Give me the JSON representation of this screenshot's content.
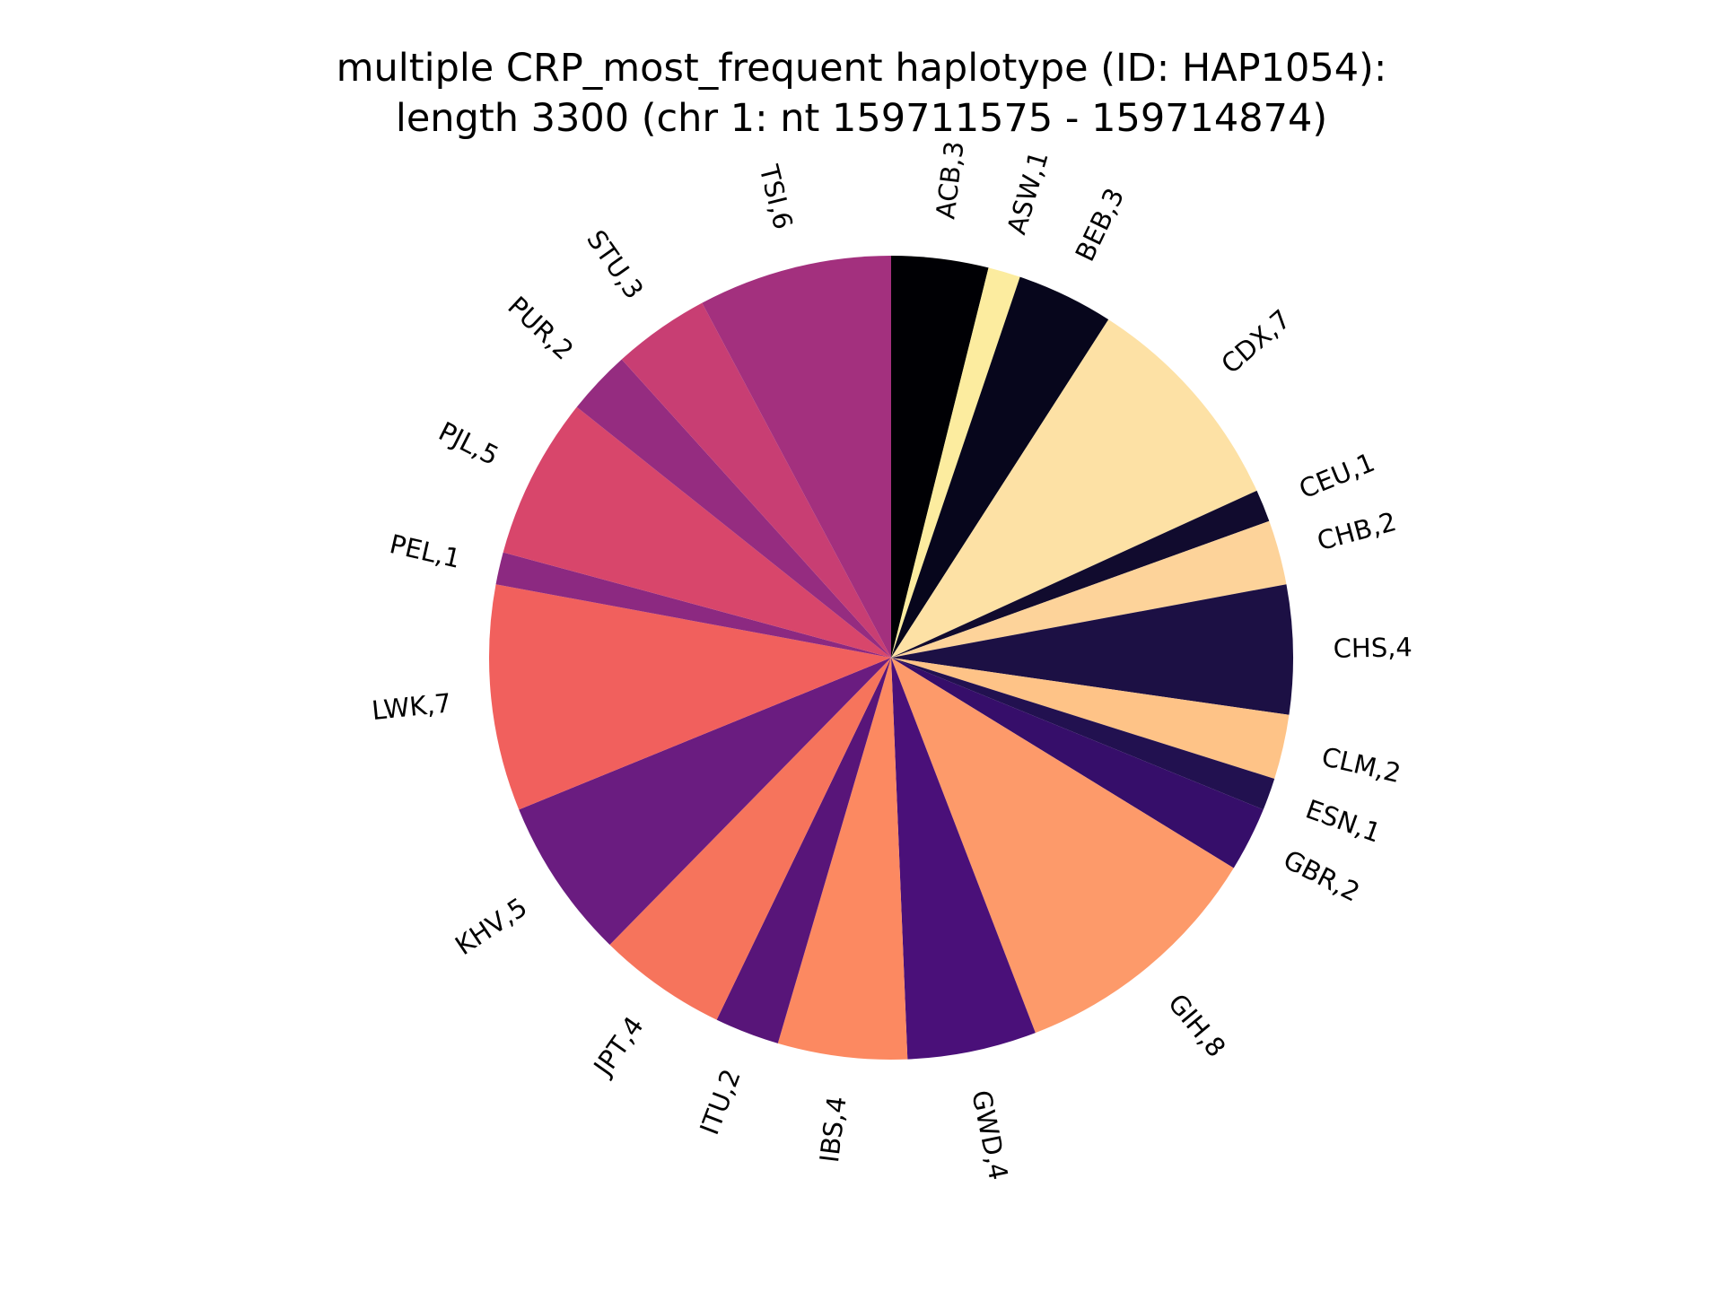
{
  "chart_data": {
    "type": "pie",
    "title_line1": "multiple CRP_most_frequent haplotype (ID: HAP1054):",
    "title_line2": "length 3300 (chr 1: nt 159711575 - 159714874)",
    "start_angle_deg": 90,
    "direction": "clockwise",
    "colormap": "magma",
    "slices": [
      {
        "label": "ACB,3",
        "category": "ACB",
        "value": 3,
        "color": "#000004"
      },
      {
        "label": "ASW,1",
        "category": "ASW",
        "value": 1,
        "color": "#fcec9f"
      },
      {
        "label": "BEB,3",
        "category": "BEB",
        "value": 3,
        "color": "#07061c"
      },
      {
        "label": "CDX,7",
        "category": "CDX",
        "value": 7,
        "color": "#fde1a5"
      },
      {
        "label": "CEU,1",
        "category": "CEU",
        "value": 1,
        "color": "#110b2e"
      },
      {
        "label": "CHB,2",
        "category": "CHB",
        "value": 2,
        "color": "#fdd39a"
      },
      {
        "label": "CHS,4",
        "category": "CHS",
        "value": 4,
        "color": "#1c1044"
      },
      {
        "label": "CLM,2",
        "category": "CLM",
        "value": 2,
        "color": "#fec387"
      },
      {
        "label": "ESN,1",
        "category": "ESN",
        "value": 1,
        "color": "#221150"
      },
      {
        "label": "GBR,2",
        "category": "GBR",
        "value": 2,
        "color": "#360e6a"
      },
      {
        "label": "GIH,8",
        "category": "GIH",
        "value": 8,
        "color": "#fd9a6a"
      },
      {
        "label": "GWD,4",
        "category": "GWD",
        "value": 4,
        "color": "#4a1079"
      },
      {
        "label": "IBS,4",
        "category": "IBS",
        "value": 4,
        "color": "#fc8961"
      },
      {
        "label": "ITU,2",
        "category": "ITU",
        "value": 2,
        "color": "#581579"
      },
      {
        "label": "JPT,4",
        "category": "JPT",
        "value": 4,
        "color": "#f6745c"
      },
      {
        "label": "KHV,5",
        "category": "KHV",
        "value": 5,
        "color": "#6a1c80"
      },
      {
        "label": "LWK,7",
        "category": "LWK",
        "value": 7,
        "color": "#f1605d"
      },
      {
        "label": "PEL,1",
        "category": "PEL",
        "value": 1,
        "color": "#8c2981"
      },
      {
        "label": "PJL,5",
        "category": "PJL",
        "value": 5,
        "color": "#d8466b"
      },
      {
        "label": "PUR,2",
        "category": "PUR",
        "value": 2,
        "color": "#952c80"
      },
      {
        "label": "STU,3",
        "category": "STU",
        "value": 3,
        "color": "#c83e73"
      },
      {
        "label": "TSI,6",
        "category": "TSI",
        "value": 6,
        "color": "#a3307e"
      }
    ]
  }
}
